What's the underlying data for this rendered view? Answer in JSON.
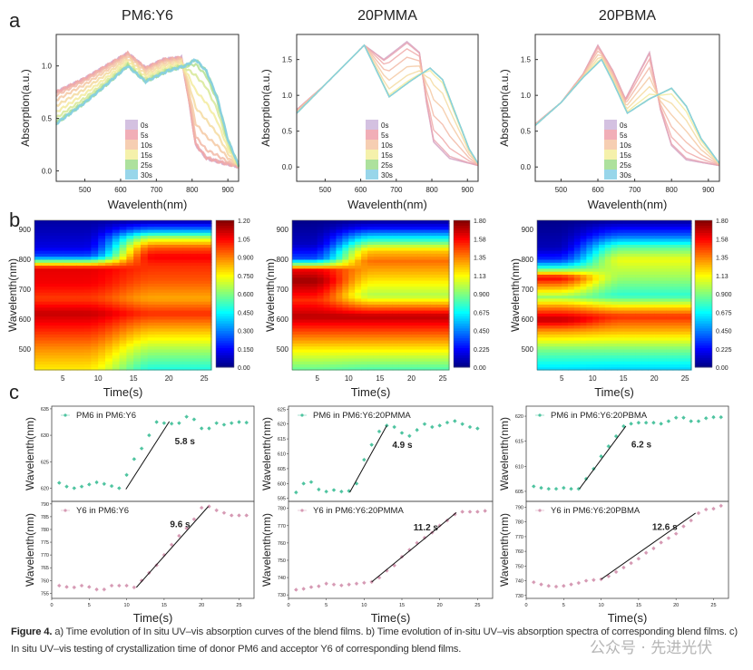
{
  "panel_labels": {
    "a": "a",
    "b": "b",
    "c": "c"
  },
  "caption": {
    "figure_label": "Figure 4.",
    "text": "a) Time evolution of In situ UV–vis absorption curves of the blend films. b) Time evolution of in-situ UV–vis absorption spectra of corresponding blend films. c) In situ UV–vis testing of crystallization time of donor PM6 and acceptor Y6 of corresponding blend films."
  },
  "watermark": "公众号 · 先进光伏",
  "chart_data": [
    {
      "panel": "a",
      "type": "line",
      "title": "PM6:Y6",
      "xlabel": "Wavelenth(nm)",
      "ylabel": "Absorption(a.u.)",
      "xlim": [
        420,
        930
      ],
      "ylim": [
        -0.1,
        1.3
      ],
      "x_ticks": [
        "500",
        "600",
        "700",
        "800",
        "900"
      ],
      "y_ticks": [
        "0.0",
        "0.5",
        "1.0"
      ],
      "legend": [
        "0s",
        "5s",
        "10s",
        "15s",
        "25s",
        "30s"
      ],
      "legend_placement": "bottom-center",
      "legend_colors": [
        "#cdb6dc",
        "#eea0aa",
        "#f4c6a4",
        "#f3ee9c",
        "#9fdc8c",
        "#86cfe6"
      ],
      "spectra": {
        "0s": [
          [
            420,
            0.75
          ],
          [
            500,
            0.88
          ],
          [
            560,
            1.0
          ],
          [
            620,
            1.12
          ],
          [
            670,
            0.98
          ],
          [
            720,
            1.06
          ],
          [
            770,
            1.08
          ],
          [
            790,
            0.7
          ],
          [
            810,
            0.25
          ],
          [
            840,
            0.12
          ],
          [
            880,
            0.08
          ],
          [
            930,
            0.04
          ]
        ],
        "30s": [
          [
            420,
            0.45
          ],
          [
            500,
            0.65
          ],
          [
            560,
            0.82
          ],
          [
            620,
            1.0
          ],
          [
            670,
            0.85
          ],
          [
            730,
            0.95
          ],
          [
            780,
            1.0
          ],
          [
            810,
            1.06
          ],
          [
            840,
            0.95
          ],
          [
            870,
            0.7
          ],
          [
            900,
            0.3
          ],
          [
            930,
            0.05
          ]
        ]
      }
    },
    {
      "panel": "a",
      "type": "line",
      "title": "20PMMA",
      "xlabel": "Wavelenth(nm)",
      "ylabel": "Absorption(a.u.)",
      "xlim": [
        420,
        930
      ],
      "ylim": [
        -0.2,
        1.85
      ],
      "x_ticks": [
        "500",
        "600",
        "700",
        "800",
        "900"
      ],
      "y_ticks": [
        "0.0",
        "0.5",
        "1.0",
        "1.5"
      ],
      "legend": [
        "0s",
        "5s",
        "10s",
        "15s",
        "25s",
        "30s"
      ],
      "legend_placement": "bottom-center",
      "legend_colors": [
        "#cdb6dc",
        "#eea0aa",
        "#f4c6a4",
        "#f3ee9c",
        "#9fdc8c",
        "#86cfe6"
      ],
      "spectra": {
        "0s": [
          [
            420,
            0.8
          ],
          [
            500,
            1.15
          ],
          [
            560,
            1.45
          ],
          [
            610,
            1.7
          ],
          [
            665,
            1.5
          ],
          [
            730,
            1.75
          ],
          [
            765,
            1.6
          ],
          [
            785,
            0.9
          ],
          [
            805,
            0.35
          ],
          [
            850,
            0.12
          ],
          [
            930,
            0.02
          ]
        ],
        "30s": [
          [
            420,
            0.75
          ],
          [
            500,
            1.15
          ],
          [
            560,
            1.45
          ],
          [
            610,
            1.7
          ],
          [
            680,
            0.98
          ],
          [
            740,
            1.2
          ],
          [
            795,
            1.38
          ],
          [
            830,
            1.22
          ],
          [
            870,
            0.7
          ],
          [
            905,
            0.25
          ],
          [
            930,
            0.05
          ]
        ]
      }
    },
    {
      "panel": "a",
      "type": "line",
      "title": "20PBMA",
      "xlabel": "Wavelenth(nm)",
      "ylabel": "Absorption(a.u.)",
      "xlim": [
        430,
        930
      ],
      "ylim": [
        -0.2,
        1.85
      ],
      "x_ticks": [
        "500",
        "600",
        "700",
        "800",
        "900"
      ],
      "y_ticks": [
        "0.0",
        "0.5",
        "1.0",
        "1.5"
      ],
      "legend": [
        "0s",
        "5s",
        "10s",
        "15s",
        "25s",
        "30s"
      ],
      "legend_placement": "bottom-center",
      "legend_colors": [
        "#cdb6dc",
        "#eea0aa",
        "#f4c6a4",
        "#f3ee9c",
        "#9fdc8c",
        "#86cfe6"
      ],
      "spectra": {
        "0s": [
          [
            430,
            0.6
          ],
          [
            500,
            0.9
          ],
          [
            560,
            1.3
          ],
          [
            600,
            1.7
          ],
          [
            640,
            1.35
          ],
          [
            675,
            0.95
          ],
          [
            740,
            1.6
          ],
          [
            770,
            0.8
          ],
          [
            800,
            0.3
          ],
          [
            840,
            0.1
          ],
          [
            930,
            0.02
          ]
        ],
        "30s": [
          [
            430,
            0.58
          ],
          [
            500,
            0.9
          ],
          [
            560,
            1.25
          ],
          [
            610,
            1.5
          ],
          [
            640,
            1.2
          ],
          [
            680,
            0.75
          ],
          [
            740,
            0.95
          ],
          [
            800,
            1.1
          ],
          [
            840,
            0.85
          ],
          [
            880,
            0.4
          ],
          [
            930,
            0.05
          ]
        ]
      }
    },
    {
      "panel": "b",
      "type": "heatmap",
      "xlabel": "Time(s)",
      "ylabel": "Wavelenth(nm)",
      "xlim": [
        1,
        26
      ],
      "ylim": [
        430,
        930
      ],
      "x_ticks": [
        "5",
        "10",
        "15",
        "20",
        "25"
      ],
      "y_ticks": [
        "500",
        "600",
        "700",
        "800",
        "900"
      ],
      "colormap": "jet",
      "zlim": [
        0,
        1.2
      ],
      "colorbar_ticks": [
        "0.00",
        "0.150",
        "0.300",
        "0.450",
        "0.600",
        "0.750",
        "0.900",
        "1.05",
        "1.20"
      ]
    },
    {
      "panel": "b",
      "type": "heatmap",
      "xlabel": "Time(s)",
      "ylabel": "Wavelenth(nm)",
      "xlim": [
        1,
        26
      ],
      "ylim": [
        430,
        930
      ],
      "x_ticks": [
        "5",
        "10",
        "15",
        "20",
        "25"
      ],
      "y_ticks": [
        "500",
        "600",
        "700",
        "800",
        "900"
      ],
      "colormap": "jet",
      "zlim": [
        0,
        1.8
      ],
      "colorbar_ticks": [
        "0.00",
        "0.225",
        "0.450",
        "0.675",
        "0.900",
        "1.13",
        "1.35",
        "1.58",
        "1.80"
      ]
    },
    {
      "panel": "b",
      "type": "heatmap",
      "xlabel": "Time(s)",
      "ylabel": "Wavelenth(nm)",
      "xlim": [
        1,
        26
      ],
      "ylim": [
        430,
        930
      ],
      "x_ticks": [
        "5",
        "10",
        "15",
        "20",
        "25"
      ],
      "y_ticks": [
        "500",
        "600",
        "700",
        "800",
        "900"
      ],
      "colormap": "jet",
      "zlim": [
        0,
        1.8
      ],
      "colorbar_ticks": [
        "0.00",
        "0.225",
        "0.450",
        "0.675",
        "0.900",
        "1.13",
        "1.35",
        "1.58",
        "1.80"
      ]
    },
    {
      "panel": "c",
      "type": "scatter",
      "position": "top",
      "ylabel": "Wavelenth(nm)",
      "xlim": [
        0,
        27
      ],
      "ylim": [
        617.5,
        635.5
      ],
      "y_ticks": [
        "620",
        "625",
        "630",
        "635"
      ],
      "color": "#4fc4a0",
      "series": [
        {
          "name": "PM6 in PM6:Y6",
          "x": [
            1,
            2,
            3,
            4,
            5,
            6,
            7,
            8,
            9,
            10,
            11,
            12,
            13,
            14,
            15,
            16,
            17,
            18,
            19,
            20,
            21,
            22,
            23,
            24,
            25,
            26
          ],
          "y": [
            621,
            620.3,
            620,
            620.3,
            620.7,
            621.1,
            620.8,
            620.4,
            620,
            622.5,
            625.5,
            627.5,
            630,
            632.5,
            632.3,
            632.2,
            632.3,
            633.5,
            633,
            631.3,
            631.3,
            632.3,
            632,
            632.3,
            632.5,
            632.4
          ]
        }
      ],
      "fit": {
        "x": [
          9.9,
          15.7
        ],
        "y": [
          619.8,
          632.6
        ]
      },
      "annotation": "5.8 s"
    },
    {
      "panel": "c",
      "type": "scatter",
      "position": "bottom",
      "xlabel": "Time(s)",
      "ylabel": "Wavelenth(nm)",
      "xlim": [
        0,
        27
      ],
      "ylim": [
        753,
        791
      ],
      "x_ticks": [
        "0",
        "5",
        "10",
        "15",
        "20",
        "25"
      ],
      "y_ticks": [
        "755",
        "760",
        "765",
        "770",
        "775",
        "780",
        "785",
        "790"
      ],
      "color": "#d69ab4",
      "series": [
        {
          "name": "Y6 in PM6:Y6",
          "x": [
            1,
            2,
            3,
            4,
            5,
            6,
            7,
            8,
            9,
            10,
            11,
            12,
            13,
            14,
            15,
            16,
            17,
            18,
            19,
            20,
            21,
            22,
            23,
            24,
            25,
            26
          ],
          "y": [
            758,
            757.5,
            757.3,
            758,
            757.5,
            756.5,
            756.5,
            758,
            758,
            758,
            757.3,
            760,
            763,
            766,
            770,
            774,
            777.5,
            780.5,
            784,
            788.5,
            789,
            787.5,
            786.5,
            785.5,
            785.5,
            785.5
          ]
        }
      ],
      "fit": {
        "x": [
          11.3,
          20.9
        ],
        "y": [
          757.3,
          789
        ]
      },
      "annotation": "9.6 s"
    },
    {
      "panel": "c",
      "type": "scatter",
      "position": "top",
      "ylabel": "Wavelenth(nm)",
      "xlim": [
        0,
        27
      ],
      "ylim": [
        594,
        626
      ],
      "y_ticks": [
        "595",
        "600",
        "605",
        "610",
        "615",
        "620",
        "625"
      ],
      "color": "#4fc4a0",
      "series": [
        {
          "name": "PM6 in PM6:Y6:20PMMA",
          "x": [
            1,
            2,
            3,
            4,
            5,
            6,
            7,
            8,
            9,
            10,
            11,
            12,
            13,
            14,
            15,
            16,
            17,
            18,
            19,
            20,
            21,
            22,
            23,
            24,
            25
          ],
          "y": [
            597,
            600,
            600.5,
            598,
            597.3,
            597.8,
            597.3,
            597.5,
            600,
            608,
            613,
            617.5,
            619.5,
            619,
            617,
            616,
            618,
            620,
            619,
            619.5,
            620.5,
            621,
            620,
            619,
            618.5
          ]
        }
      ],
      "fit": {
        "x": [
          8.1,
          13
        ],
        "y": [
          597,
          619.5
        ]
      },
      "annotation": "4.9 s"
    },
    {
      "panel": "c",
      "type": "scatter",
      "position": "bottom",
      "xlabel": "Time(s)",
      "ylabel": "Wavelenth(nm)",
      "xlim": [
        0,
        27
      ],
      "ylim": [
        728,
        784
      ],
      "x_ticks": [
        "0",
        "5",
        "10",
        "15",
        "20",
        "25"
      ],
      "y_ticks": [
        "730",
        "740",
        "750",
        "760",
        "770",
        "780"
      ],
      "color": "#d69ab4",
      "series": [
        {
          "name": "Y6 in PM6:Y6:20PMMA",
          "x": [
            1,
            2,
            3,
            4,
            5,
            6,
            7,
            8,
            9,
            10,
            11,
            12,
            13,
            14,
            15,
            16,
            17,
            18,
            19,
            20,
            21,
            22,
            23,
            24,
            25,
            26
          ],
          "y": [
            733,
            733.5,
            734.5,
            735,
            736.5,
            736,
            735.5,
            736,
            736.5,
            737,
            737.5,
            740,
            744,
            747,
            752,
            756,
            760,
            763,
            766,
            770,
            773,
            776.5,
            778,
            778,
            778,
            778.5
          ]
        }
      ],
      "fit": {
        "x": [
          11,
          22.2
        ],
        "y": [
          737.5,
          777.5
        ]
      },
      "annotation": "11.2 s"
    },
    {
      "panel": "c",
      "type": "scatter",
      "position": "top",
      "ylabel": "Wavelenth(nm)",
      "xlim": [
        0,
        27
      ],
      "ylim": [
        603,
        622
      ],
      "y_ticks": [
        "605",
        "610",
        "615",
        "620"
      ],
      "color": "#4fc4a0",
      "series": [
        {
          "name": "PM6 in PM6:Y6:20PBMA",
          "x": [
            1,
            2,
            3,
            4,
            5,
            6,
            7,
            8,
            9,
            10,
            11,
            12,
            13,
            14,
            15,
            16,
            17,
            18,
            19,
            20,
            21,
            22,
            23,
            24,
            25,
            26
          ],
          "y": [
            606,
            605.7,
            605.5,
            605.5,
            605.7,
            605.5,
            605.5,
            607.5,
            609.5,
            612,
            614,
            616,
            618,
            618.5,
            618.7,
            618.7,
            618.7,
            618.5,
            619,
            619.7,
            619.7,
            619,
            619,
            619.6,
            619.8,
            619.8
          ]
        }
      ],
      "fit": {
        "x": [
          7.1,
          13.3
        ],
        "y": [
          605.5,
          618
        ]
      },
      "annotation": "6.2 s"
    },
    {
      "panel": "c",
      "type": "scatter",
      "position": "bottom",
      "xlabel": "Time(s)",
      "ylabel": "Wavelenth(nm)",
      "xlim": [
        0,
        27
      ],
      "ylim": [
        728,
        794
      ],
      "x_ticks": [
        "0",
        "5",
        "10",
        "15",
        "20",
        "25"
      ],
      "y_ticks": [
        "730",
        "740",
        "750",
        "760",
        "770",
        "780",
        "790"
      ],
      "color": "#d69ab4",
      "series": [
        {
          "name": "Y6 in PM6:Y6:20PBMA",
          "x": [
            1,
            2,
            3,
            4,
            5,
            6,
            7,
            8,
            9,
            10,
            11,
            12,
            13,
            14,
            15,
            16,
            17,
            18,
            19,
            20,
            21,
            22,
            23,
            24,
            25,
            26
          ],
          "y": [
            739,
            737.5,
            736.5,
            736,
            736.5,
            737.5,
            738.5,
            740,
            740.5,
            741,
            743,
            746,
            749,
            752,
            755,
            759,
            762,
            766,
            769,
            772,
            777,
            781,
            786,
            788.5,
            789,
            791
          ]
        }
      ],
      "fit": {
        "x": [
          10,
          22.6
        ],
        "y": [
          741,
          786
        ]
      },
      "annotation": "12.6 s"
    }
  ]
}
